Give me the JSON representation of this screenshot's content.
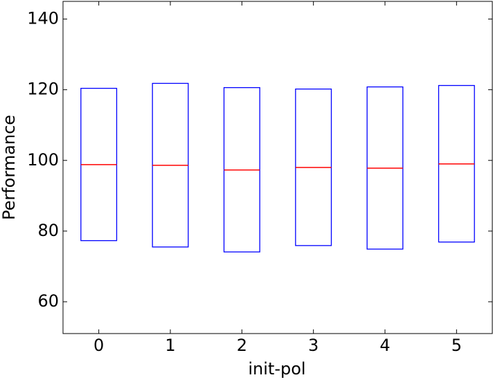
{
  "chart_data": {
    "type": "box",
    "x_label": "init-pol",
    "y_label": "Performance",
    "x": [
      0,
      1,
      2,
      3,
      4,
      5
    ],
    "xlim": [
      -0.5,
      5.5
    ],
    "xticks": [
      0,
      1,
      2,
      3,
      4,
      5
    ],
    "ylim": [
      51,
      145
    ],
    "yticks": [
      60,
      80,
      100,
      120,
      140
    ],
    "box_color": "#0000ff",
    "median_color": "#ff0000",
    "lower": [
      77.3,
      75.5,
      74.1,
      75.9,
      74.9,
      76.9
    ],
    "median": [
      98.8,
      98.6,
      97.3,
      98.0,
      97.8,
      99.0
    ],
    "upper": [
      120.4,
      121.8,
      120.6,
      120.2,
      120.8,
      121.2
    ]
  }
}
